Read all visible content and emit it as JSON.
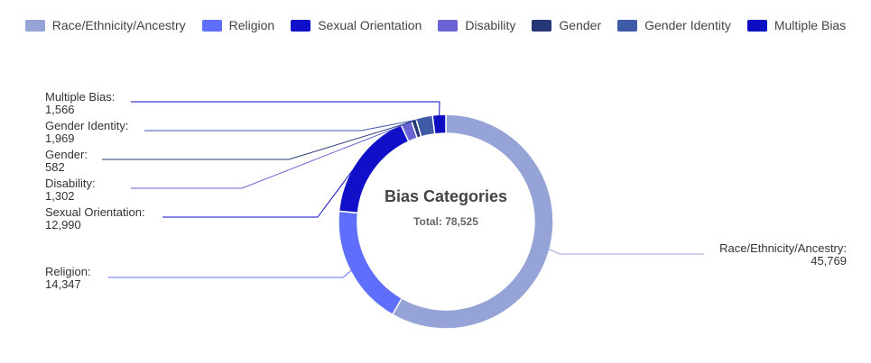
{
  "chart_data": {
    "type": "pie",
    "donut": true,
    "center_title": "Bias Categories",
    "center_subtitle": "Total: 78,525",
    "legend_position": "top",
    "slices": [
      {
        "name": "Race/Ethnicity/Ancestry",
        "value": 45769,
        "value_label": "45,769",
        "color": "#96a3d6"
      },
      {
        "name": "Religion",
        "value": 14347,
        "value_label": "14,347",
        "color": "#5f6ffb"
      },
      {
        "name": "Sexual Orientation",
        "value": 12990,
        "value_label": "12,990",
        "color": "#1010c8"
      },
      {
        "name": "Disability",
        "value": 1302,
        "value_label": "1,302",
        "color": "#6a63d4"
      },
      {
        "name": "Gender",
        "value": 582,
        "value_label": "582",
        "color": "#253775"
      },
      {
        "name": "Gender Identity",
        "value": 1969,
        "value_label": "1,969",
        "color": "#3f5aa6"
      },
      {
        "name": "Multiple Bias",
        "value": 1566,
        "value_label": "1,566",
        "color": "#0d0dc4"
      }
    ]
  }
}
